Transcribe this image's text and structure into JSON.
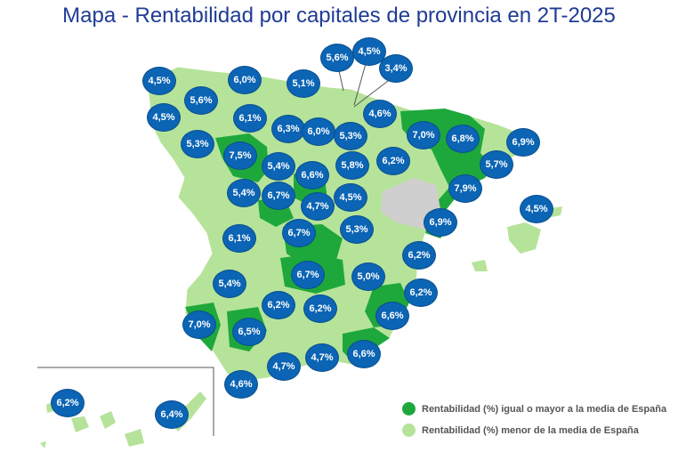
{
  "title": "Mapa - Rentabilidad por capitales de provincia en 2T-2025",
  "colors": {
    "above_or_equal": "#1ea83c",
    "below": "#b6e39a",
    "no_data": "#cfcfcf",
    "badge": "#0b64b4"
  },
  "legend": [
    {
      "label": "Rentabilidad (%) igual o mayor a la media de España",
      "color": "#1ea83c"
    },
    {
      "label": "Rentabilidad (%) menor de la media de España",
      "color": "#b6e39a"
    }
  ],
  "badges": [
    "4,5%",
    "5,6%",
    "4,5%",
    "6,0%",
    "6,1%",
    "5,3%",
    "5,1%",
    "5,6%",
    "4,5%",
    "3,4%",
    "4,6%",
    "6,3%",
    "6,0%",
    "5,3%",
    "7,0%",
    "6,8%",
    "6,9%",
    "7,5%",
    "5,4%",
    "6,6%",
    "5,8%",
    "6,2%",
    "5,7%",
    "5,4%",
    "6,7%",
    "4,7%",
    "4,5%",
    "7,9%",
    "4,5%",
    "6,1%",
    "6,7%",
    "5,3%",
    "6,9%",
    "6,2%",
    "6,7%",
    "5,0%",
    "5,4%",
    "6,2%",
    "6,2%",
    "6,2%",
    "6,6%",
    "7,0%",
    "6,5%",
    "4,7%",
    "4,7%",
    "6,6%",
    "4,6%",
    "6,2%",
    "6,4%"
  ]
}
